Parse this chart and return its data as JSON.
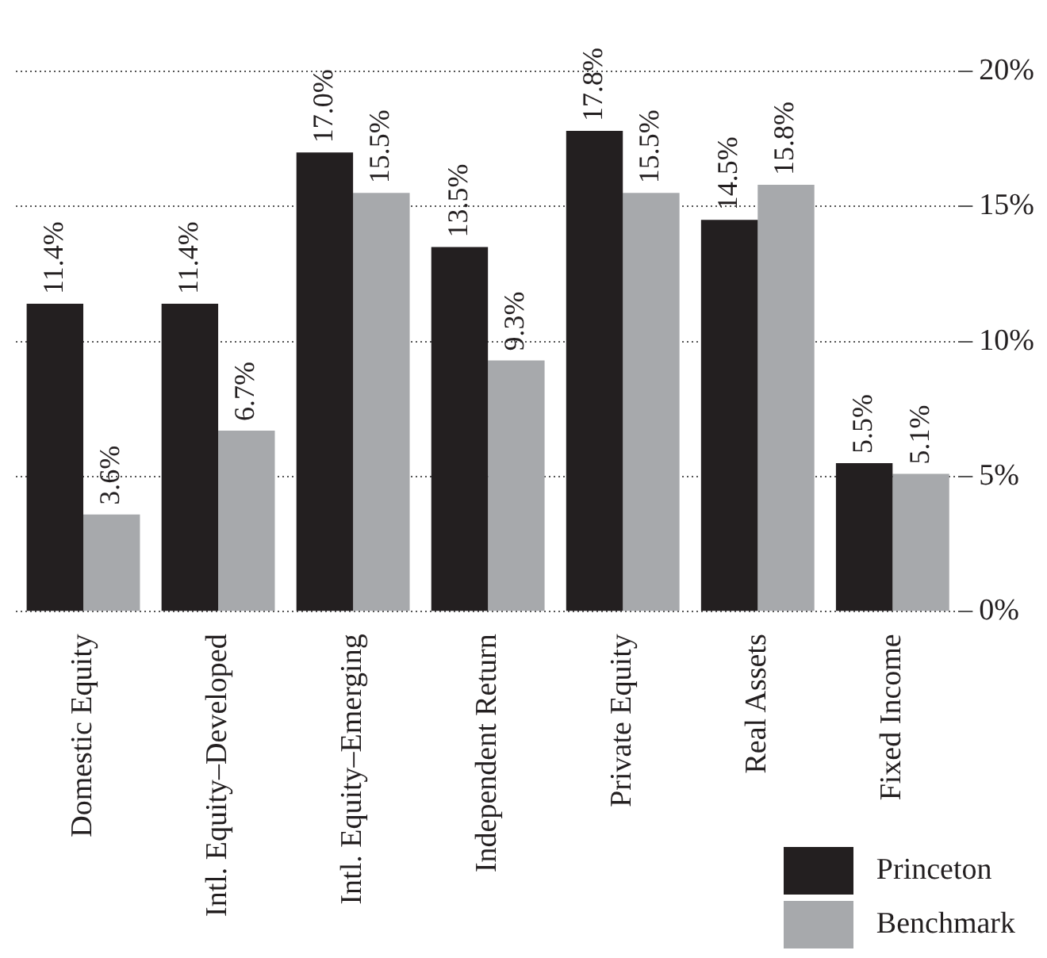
{
  "chart_data": {
    "type": "bar",
    "categories": [
      "Domestic Equity",
      "Intl. Equity–Developed",
      "Intl. Equity–Emerging",
      "Independent Return",
      "Private Equity",
      "Real Assets",
      "Fixed Income"
    ],
    "series": [
      {
        "name": "Princeton",
        "color": "#231f20",
        "values": [
          11.4,
          11.4,
          17.0,
          13.5,
          17.8,
          14.5,
          5.5
        ],
        "value_labels": [
          "11.4%",
          "11.4%",
          "17.0%",
          "13.5%",
          "17.8%",
          "14.5%",
          "5.5%"
        ]
      },
      {
        "name": "Benchmark",
        "color": "#a7a9ac",
        "values": [
          3.6,
          6.7,
          15.5,
          9.3,
          15.5,
          15.8,
          5.1
        ],
        "value_labels": [
          "3.6%",
          "6.7%",
          "15.5%",
          "9.3%",
          "15.5%",
          "15.8%",
          "5.1%"
        ]
      }
    ],
    "ylim": [
      0,
      20
    ],
    "yticks": [
      {
        "value": 0,
        "label": "0%"
      },
      {
        "value": 5,
        "label": "5%"
      },
      {
        "value": 10,
        "label": "10%"
      },
      {
        "value": 15,
        "label": "15%"
      },
      {
        "value": 20,
        "label": "20%"
      }
    ],
    "grid": "y",
    "legend": "bottom right"
  }
}
